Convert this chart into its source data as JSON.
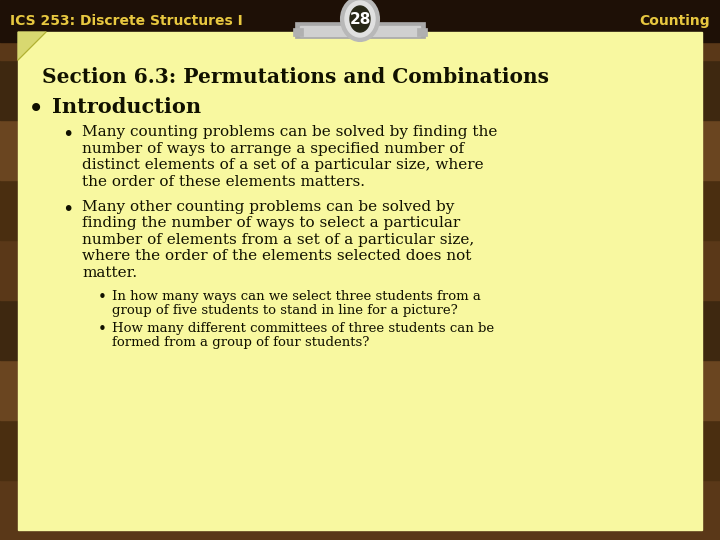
{
  "header_left": "ICS 253: Discrete Structures I",
  "header_center": "28",
  "header_right": "Counting",
  "header_text_color": "#e8c840",
  "page_bg": "#f8f8a0",
  "fold_bg": "#d8d870",
  "section_title": "Section 6.3: Permutations and Combinations",
  "bullet1": "Introduction",
  "sub1_lines": [
    "Many counting problems can be solved by finding the",
    "number of ways to arrange a specified number of",
    "distinct elements of a set of a particular size, where",
    "the order of these elements matters."
  ],
  "sub2_lines": [
    "Many other counting problems can be solved by",
    "finding the number of ways to select a particular",
    "number of elements from a set of a particular size,",
    "where the order of the elements selected does not",
    "matter."
  ],
  "subsub1_lines": [
    "In how many ways can we select three students from a",
    "group of five students to stand in line for a picture?"
  ],
  "subsub2_lines": [
    "How many different committees of three students can be",
    "formed from a group of four students?"
  ],
  "wood_dark": "#2e1a08",
  "wood_mid": "#5a3515",
  "wood_light": "#7a5025"
}
